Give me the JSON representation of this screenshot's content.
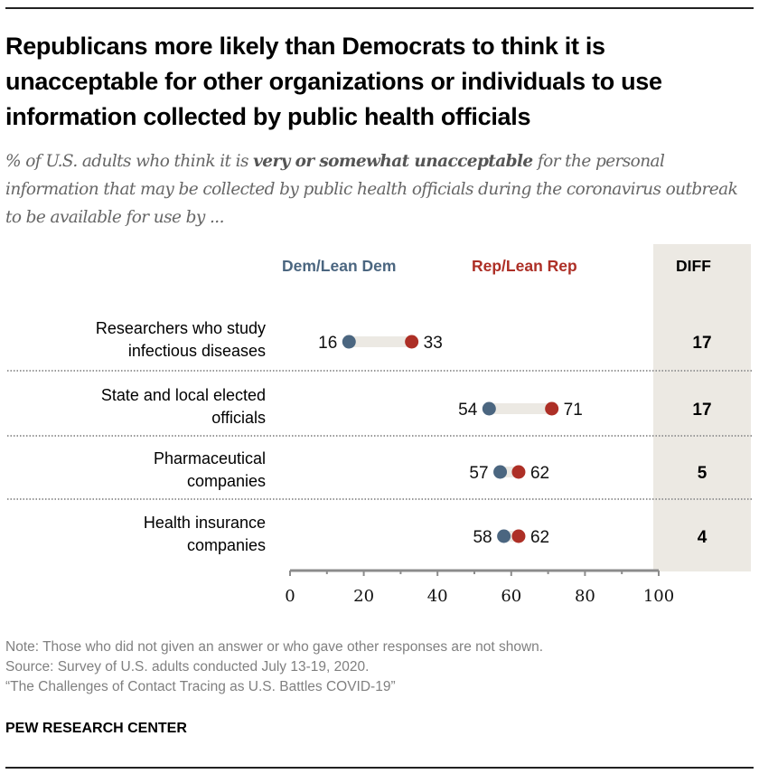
{
  "header": {
    "title": "Republicans more likely than Democrats to think it is unacceptable for other organizations or individuals to use information collected by public health officials",
    "subtitle_pre": "% of U.S. adults who think it is ",
    "subtitle_bold": "very or somewhat unacceptable",
    "subtitle_post": " for the personal information that may be collected by public health officials during the coronavirus outbreak to be available for use by ..."
  },
  "colors": {
    "dem": "#4b6680",
    "rep": "#ad2f26",
    "connector": "#ece9e3",
    "diff_bg": "#ece9e3",
    "axis": "#8c8c8c"
  },
  "chart_data": {
    "type": "dot-plot",
    "title": "Republicans more likely than Democrats to think it is unacceptable for other organizations or individuals to use information collected by public health officials",
    "categories": [
      "Researchers who study infectious diseases",
      "State and local elected officials",
      "Pharmaceutical companies",
      "Health insurance companies"
    ],
    "category_lines": [
      [
        "Researchers who study",
        "infectious diseases"
      ],
      [
        "State and local elected",
        "officials"
      ],
      [
        "Pharmaceutical",
        "companies"
      ],
      [
        "Health insurance",
        "companies"
      ]
    ],
    "series": [
      {
        "name": "Dem/Lean Dem",
        "values": [
          16,
          54,
          57,
          58
        ]
      },
      {
        "name": "Rep/Lean Rep",
        "values": [
          33,
          71,
          62,
          62
        ]
      }
    ],
    "diff_label": "DIFF",
    "diff": [
      17,
      17,
      5,
      4
    ],
    "xlim": [
      0,
      100
    ],
    "xticks": [
      0,
      20,
      40,
      60,
      80,
      100
    ],
    "minor_ticks": [
      10,
      30,
      50,
      70,
      90
    ],
    "xlabel": "",
    "ylabel": "",
    "grid": false,
    "legend": "top"
  },
  "footer": {
    "note": "Note: Those who did not given an answer or who gave other responses are not shown.",
    "source": "Source: Survey of U.S. adults conducted July 13-19, 2020.",
    "report": "“The Challenges of Contact Tracing as U.S. Battles COVID-19”",
    "brand": "PEW RESEARCH CENTER"
  }
}
